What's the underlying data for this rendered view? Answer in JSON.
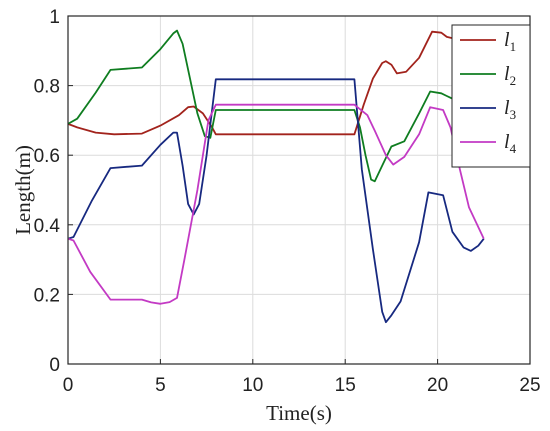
{
  "chart_data": {
    "type": "line",
    "xlabel": "Time(s)",
    "ylabel": "Length(m)",
    "xlim": [
      0,
      25
    ],
    "ylim": [
      0,
      1
    ],
    "xticks": [
      "0",
      "5",
      "10",
      "15",
      "20",
      "25"
    ],
    "yticks": [
      "0",
      "0.2",
      "0.4",
      "0.6",
      "0.8",
      "1"
    ],
    "grid": true,
    "legend_position": "top-right",
    "series": [
      {
        "name": "l1",
        "name_base": "l",
        "name_sub": "1",
        "color": "#a2231c",
        "points": [
          [
            0,
            0.69
          ],
          [
            0.5,
            0.68
          ],
          [
            1.5,
            0.665
          ],
          [
            2.5,
            0.66
          ],
          [
            4,
            0.662
          ],
          [
            5,
            0.685
          ],
          [
            6,
            0.715
          ],
          [
            6.5,
            0.738
          ],
          [
            6.8,
            0.74
          ],
          [
            7.3,
            0.72
          ],
          [
            7.8,
            0.68
          ],
          [
            8,
            0.66
          ],
          [
            12,
            0.66
          ],
          [
            15.5,
            0.66
          ],
          [
            16,
            0.745
          ],
          [
            16.5,
            0.82
          ],
          [
            17,
            0.865
          ],
          [
            17.2,
            0.87
          ],
          [
            17.5,
            0.86
          ],
          [
            17.8,
            0.835
          ],
          [
            18.3,
            0.84
          ],
          [
            19,
            0.88
          ],
          [
            19.7,
            0.955
          ],
          [
            20.2,
            0.952
          ],
          [
            20.5,
            0.94
          ],
          [
            20.9,
            0.935
          ],
          [
            21.1,
            0.9
          ]
        ]
      },
      {
        "name": "l2",
        "name_base": "l",
        "name_sub": "2",
        "color": "#0f7d20",
        "points": [
          [
            0,
            0.69
          ],
          [
            0.5,
            0.705
          ],
          [
            1.5,
            0.78
          ],
          [
            2.3,
            0.845
          ],
          [
            4,
            0.852
          ],
          [
            5,
            0.905
          ],
          [
            5.7,
            0.95
          ],
          [
            5.9,
            0.958
          ],
          [
            6.2,
            0.92
          ],
          [
            6.6,
            0.82
          ],
          [
            7,
            0.72
          ],
          [
            7.4,
            0.655
          ],
          [
            7.7,
            0.65
          ],
          [
            8,
            0.73
          ],
          [
            12,
            0.73
          ],
          [
            15.5,
            0.73
          ],
          [
            15.8,
            0.68
          ],
          [
            16.1,
            0.6
          ],
          [
            16.4,
            0.53
          ],
          [
            16.6,
            0.525
          ],
          [
            17,
            0.57
          ],
          [
            17.5,
            0.625
          ],
          [
            18.2,
            0.64
          ],
          [
            19,
            0.72
          ],
          [
            19.6,
            0.783
          ],
          [
            20.2,
            0.778
          ],
          [
            20.5,
            0.77
          ],
          [
            20.9,
            0.76
          ],
          [
            21.2,
            0.748
          ]
        ]
      },
      {
        "name": "l3",
        "name_base": "l",
        "name_sub": "3",
        "color": "#172980",
        "points": [
          [
            0,
            0.36
          ],
          [
            0.3,
            0.365
          ],
          [
            1.3,
            0.47
          ],
          [
            2.3,
            0.563
          ],
          [
            4,
            0.57
          ],
          [
            5,
            0.63
          ],
          [
            5.7,
            0.665
          ],
          [
            5.9,
            0.665
          ],
          [
            6.2,
            0.57
          ],
          [
            6.5,
            0.46
          ],
          [
            6.8,
            0.43
          ],
          [
            7.1,
            0.46
          ],
          [
            7.5,
            0.6
          ],
          [
            8,
            0.818
          ],
          [
            12,
            0.818
          ],
          [
            15.5,
            0.818
          ],
          [
            15.9,
            0.56
          ],
          [
            16.5,
            0.33
          ],
          [
            17,
            0.15
          ],
          [
            17.2,
            0.12
          ],
          [
            17.5,
            0.14
          ],
          [
            18,
            0.18
          ],
          [
            19,
            0.35
          ],
          [
            19.5,
            0.493
          ],
          [
            20.3,
            0.485
          ],
          [
            20.8,
            0.38
          ],
          [
            21.4,
            0.335
          ],
          [
            21.8,
            0.325
          ],
          [
            22.2,
            0.34
          ],
          [
            22.5,
            0.36
          ]
        ]
      },
      {
        "name": "l4",
        "name_base": "l",
        "name_sub": "4",
        "color": "#c33ac4",
        "points": [
          [
            0,
            0.36
          ],
          [
            0.3,
            0.355
          ],
          [
            1.2,
            0.265
          ],
          [
            2.3,
            0.185
          ],
          [
            4,
            0.185
          ],
          [
            4.5,
            0.177
          ],
          [
            5,
            0.173
          ],
          [
            5.5,
            0.178
          ],
          [
            5.9,
            0.19
          ],
          [
            6.3,
            0.3
          ],
          [
            7,
            0.5
          ],
          [
            7.6,
            0.7
          ],
          [
            8,
            0.745
          ],
          [
            12,
            0.745
          ],
          [
            15.5,
            0.745
          ],
          [
            16.2,
            0.715
          ],
          [
            16.6,
            0.67
          ],
          [
            17.2,
            0.6
          ],
          [
            17.6,
            0.573
          ],
          [
            18.2,
            0.595
          ],
          [
            19,
            0.66
          ],
          [
            19.6,
            0.738
          ],
          [
            20.3,
            0.73
          ],
          [
            20.7,
            0.68
          ],
          [
            21.2,
            0.56
          ],
          [
            21.7,
            0.45
          ],
          [
            22.5,
            0.36
          ]
        ]
      }
    ]
  }
}
